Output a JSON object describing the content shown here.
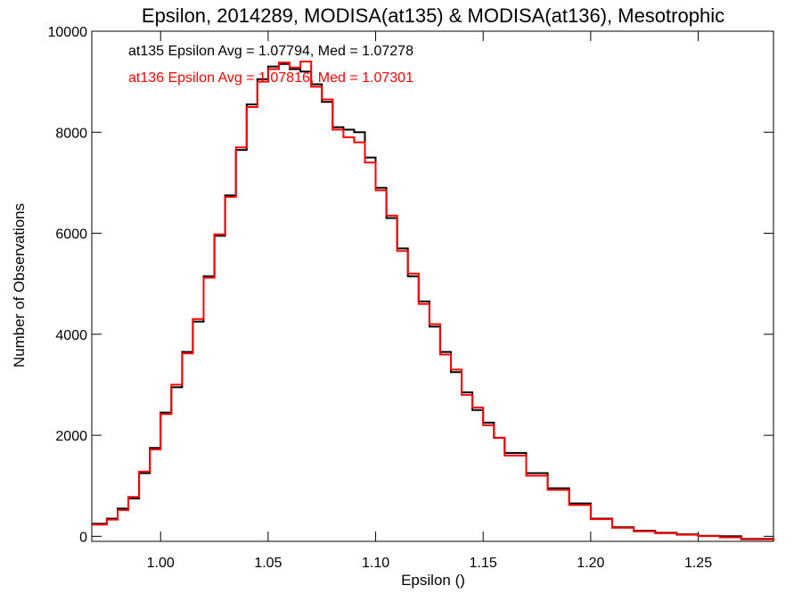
{
  "chart_data": {
    "type": "line",
    "title": "Epsilon, 2014289, MODISA(at135) & MODISA(at136), Mesotrophic",
    "xlabel": "Epsilon ()",
    "ylabel": "Number of Observations",
    "xlim": [
      0.968,
      1.285
    ],
    "ylim": [
      -100,
      10000
    ],
    "xticks": [
      1.0,
      1.05,
      1.1,
      1.15,
      1.2,
      1.25
    ],
    "xtick_labels": [
      "1.00",
      "1.05",
      "1.10",
      "1.15",
      "1.20",
      "1.25"
    ],
    "yticks": [
      0,
      2000,
      4000,
      6000,
      8000,
      10000
    ],
    "ytick_labels": [
      "0",
      "2000",
      "4000",
      "6000",
      "8000",
      "10000"
    ],
    "grid": false,
    "annotations": [
      {
        "text": "at135 Epsilon Avg = 1.07794, Med = 1.07278",
        "color": "#000000"
      },
      {
        "text": "at136 Epsilon Avg = 1.07816, Med = 1.07301",
        "color": "#ff0000"
      }
    ],
    "series": [
      {
        "color": "#000000",
        "x": [
          0.968,
          0.975,
          0.98,
          0.985,
          0.99,
          0.995,
          1.0,
          1.005,
          1.01,
          1.015,
          1.02,
          1.025,
          1.03,
          1.035,
          1.04,
          1.045,
          1.05,
          1.055,
          1.06,
          1.065,
          1.07,
          1.075,
          1.08,
          1.085,
          1.09,
          1.095,
          1.1,
          1.105,
          1.11,
          1.115,
          1.12,
          1.125,
          1.13,
          1.135,
          1.14,
          1.145,
          1.15,
          1.155,
          1.16,
          1.17,
          1.18,
          1.19,
          1.2,
          1.21,
          1.22,
          1.23,
          1.24,
          1.25,
          1.26,
          1.27,
          1.285
        ],
        "y": [
          250,
          350,
          550,
          750,
          1250,
          1750,
          2450,
          2950,
          3650,
          4250,
          5150,
          5950,
          6750,
          7650,
          8550,
          9050,
          9300,
          9350,
          9250,
          9200,
          8950,
          8600,
          8100,
          8050,
          8000,
          7500,
          6900,
          6300,
          5700,
          5150,
          4650,
          4150,
          3650,
          3250,
          2850,
          2500,
          2250,
          1950,
          1650,
          1250,
          950,
          650,
          350,
          180,
          110,
          70,
          40,
          10,
          0,
          -50,
          -80
        ]
      },
      {
        "color": "#ff0000",
        "x": [
          0.968,
          0.975,
          0.98,
          0.985,
          0.99,
          0.995,
          1.0,
          1.005,
          1.01,
          1.015,
          1.02,
          1.025,
          1.03,
          1.035,
          1.04,
          1.045,
          1.05,
          1.055,
          1.06,
          1.065,
          1.07,
          1.075,
          1.08,
          1.085,
          1.09,
          1.095,
          1.1,
          1.105,
          1.11,
          1.115,
          1.12,
          1.125,
          1.13,
          1.135,
          1.14,
          1.145,
          1.15,
          1.155,
          1.16,
          1.17,
          1.18,
          1.19,
          1.2,
          1.21,
          1.22,
          1.23,
          1.24,
          1.25,
          1.26,
          1.27,
          1.285
        ],
        "y": [
          230,
          330,
          520,
          780,
          1280,
          1720,
          2420,
          3000,
          3620,
          4300,
          5120,
          5980,
          6720,
          7700,
          8500,
          9000,
          9250,
          9380,
          9280,
          9400,
          8900,
          8650,
          8050,
          7900,
          7800,
          7400,
          6850,
          6350,
          5650,
          5200,
          4600,
          4200,
          3600,
          3300,
          2800,
          2550,
          2200,
          1950,
          1600,
          1200,
          920,
          620,
          340,
          170,
          100,
          60,
          30,
          5,
          -20,
          -60,
          -90
        ]
      }
    ]
  }
}
